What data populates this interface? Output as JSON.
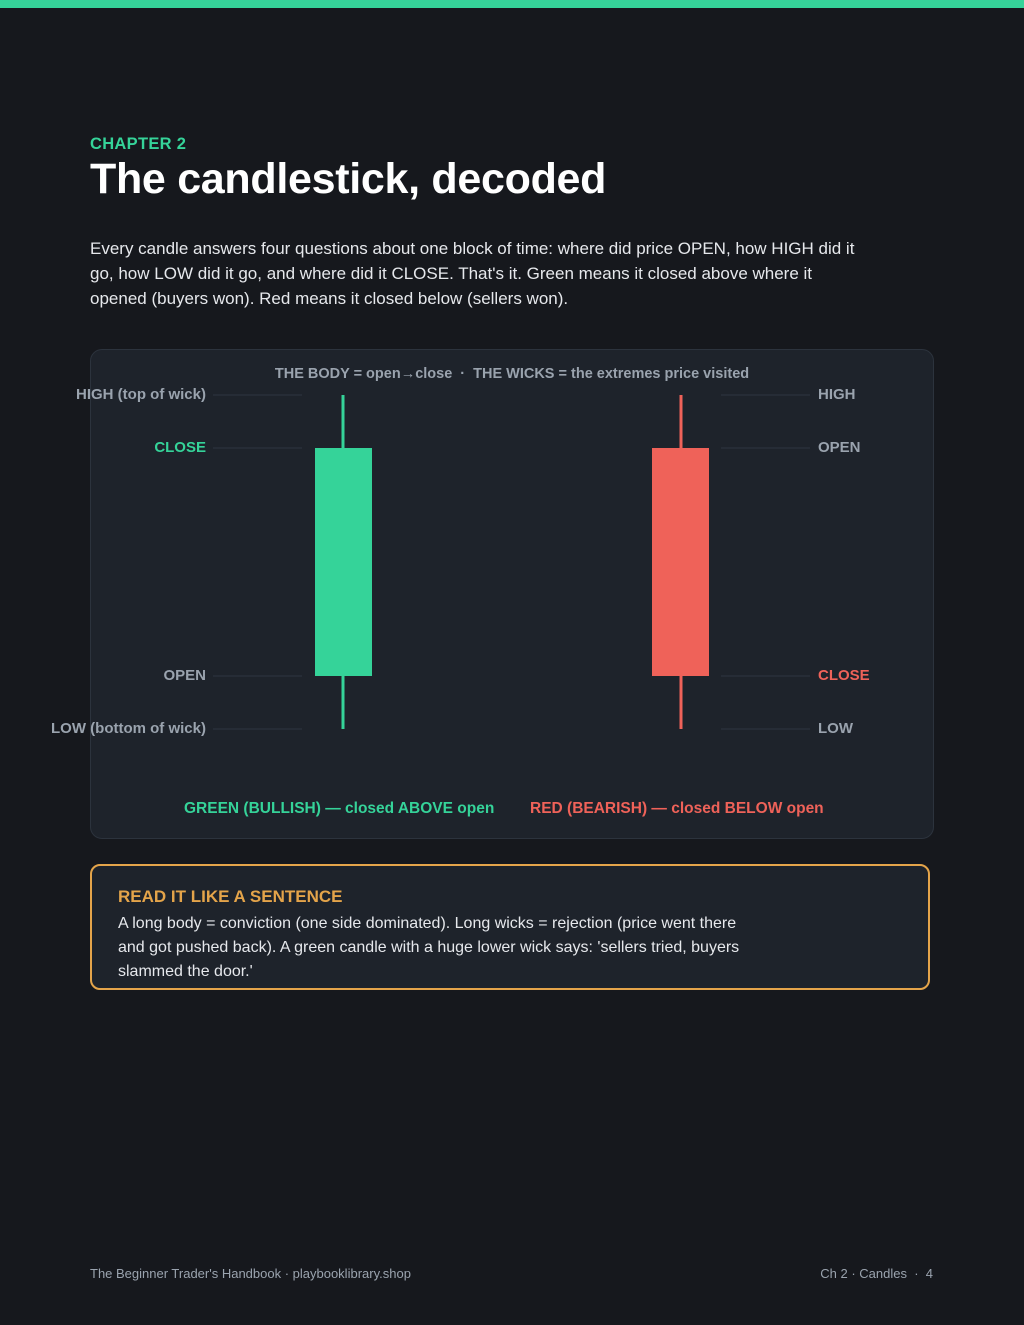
{
  "header": {
    "eyebrow": "CHAPTER 2",
    "title": "The candlestick, decoded",
    "intro": "Every candle answers four questions about one block of time: where did price OPEN, how HIGH did it go, how LOW did it go, and where did it CLOSE. That's it. Green means it closed above where it opened (buyers won). Red means it closed below (sellers won)."
  },
  "diagram": {
    "caption_body": "THE BODY = open→close",
    "caption_sep": "·",
    "caption_wicks": "THE WICKS = the extremes price visited",
    "green_candle": {
      "high_label": "HIGH (top of wick)",
      "close_label": "CLOSE",
      "open_label": "OPEN",
      "low_label": "LOW (bottom of wick)",
      "color": "#35d399",
      "summary": "GREEN (BULLISH) — closed ABOVE open"
    },
    "red_candle": {
      "high_label": "HIGH",
      "open_label": "OPEN",
      "close_label": "CLOSE",
      "low_label": "LOW",
      "color": "#ef6259",
      "summary": "RED (BEARISH) — closed BELOW open"
    }
  },
  "callout": {
    "title": "READ IT LIKE A SENTENCE",
    "body": "A long body = conviction (one side dominated). Long wicks = rejection (price went there and got pushed back). A green candle with a huge lower wick says: 'sellers tried, buyers slammed the door.'",
    "accent": "#e4a44a"
  },
  "footer": {
    "left": "The Beginner Trader's Handbook · playbooklibrary.shop",
    "right": "Ch 2 · Candles  ·  4"
  }
}
